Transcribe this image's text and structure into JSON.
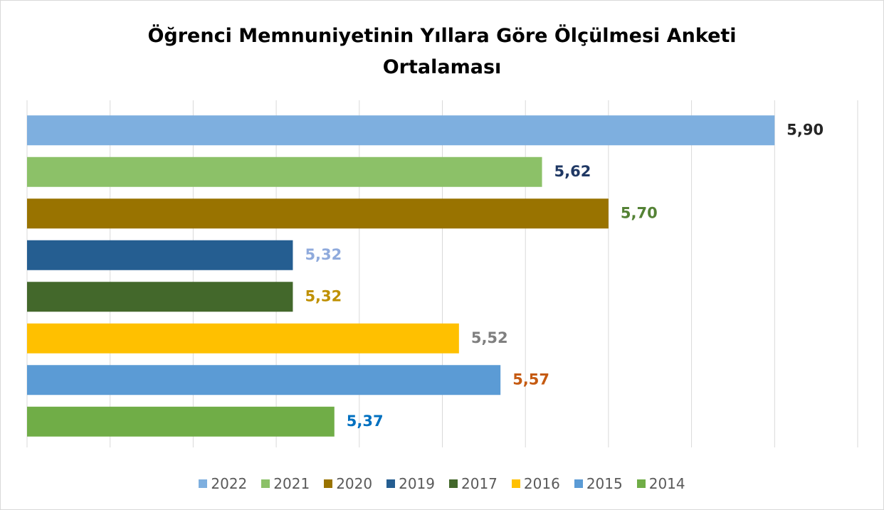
{
  "chart_data": {
    "type": "bar",
    "orientation": "horizontal",
    "title": "Öğrenci Memnuniyetinin Yıllara Göre Ölçülmesi Anketi Ortalaması",
    "xlim": [
      5.0,
      6.0
    ],
    "xticks": [
      5.0,
      5.1,
      5.2,
      5.3,
      5.4,
      5.5,
      5.6,
      5.7,
      5.8,
      5.9,
      6.0
    ],
    "grid": true,
    "legend": "bottom",
    "series": [
      {
        "name": "2022",
        "color": "#7eafdf",
        "label_color": "#262626",
        "values": [
          5.9
        ],
        "value_labels": [
          "5,90"
        ]
      },
      {
        "name": "2021",
        "color": "#8cc168",
        "label_color": "#1f3864",
        "values": [
          5.62
        ],
        "value_labels": [
          "5,62"
        ]
      },
      {
        "name": "2020",
        "color": "#997300",
        "label_color": "#548235",
        "values": [
          5.7
        ],
        "value_labels": [
          "5,70"
        ]
      },
      {
        "name": "2019",
        "color": "#255e91",
        "label_color": "#8faadc",
        "values": [
          5.32
        ],
        "value_labels": [
          "5,32"
        ]
      },
      {
        "name": "2017",
        "color": "#43682b",
        "label_color": "#bf9000",
        "values": [
          5.32
        ],
        "value_labels": [
          "5,32"
        ]
      },
      {
        "name": "2016",
        "color": "#ffc000",
        "label_color": "#7f7f7f",
        "values": [
          5.52
        ],
        "value_labels": [
          "5,52"
        ]
      },
      {
        "name": "2015",
        "color": "#5b9bd5",
        "label_color": "#c55a11",
        "values": [
          5.57
        ],
        "value_labels": [
          "5,57"
        ]
      },
      {
        "name": "2014",
        "color": "#70ad47",
        "label_color": "#0070c0",
        "values": [
          5.37
        ],
        "value_labels": [
          "5,37"
        ]
      }
    ]
  }
}
